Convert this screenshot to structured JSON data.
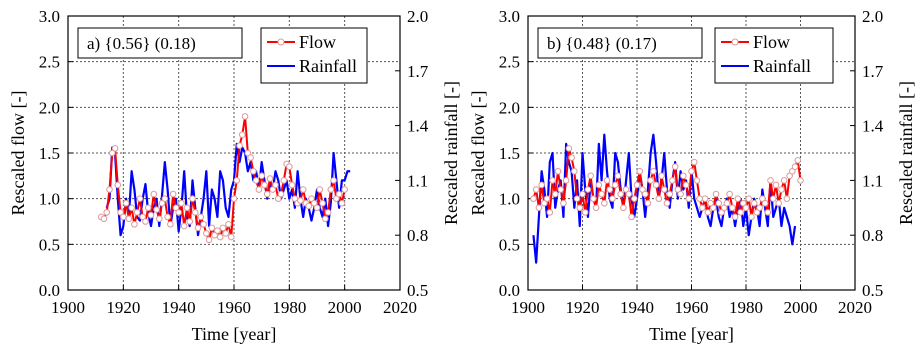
{
  "chart_data": [
    {
      "type": "line",
      "annotation": "a) {0.56} (0.18)",
      "xlabel": "Time [year]",
      "ylabel": "Rescaled flow [-]",
      "ylabel_right": "Rescaled rainfall [-]",
      "xlim": [
        1900,
        2020
      ],
      "ylim": [
        0,
        3
      ],
      "ylim_right": [
        0.5,
        2
      ],
      "x_ticks": [
        "1900",
        "1920",
        "1940",
        "1960",
        "1980",
        "2000",
        "2020"
      ],
      "y_ticks": [
        "0.0",
        "0.5",
        "1.0",
        "1.5",
        "2.0",
        "2.5",
        "3.0"
      ],
      "y_ticks_right": [
        "0.5",
        "0.8",
        "1.1",
        "1.4",
        "1.7",
        "2.0"
      ],
      "grid": true,
      "legend_position": "top-right",
      "series": [
        {
          "name": "Flow",
          "color": "#ff0000",
          "axis": "left",
          "marker": "circle",
          "x": [
            1912,
            1913,
            1914,
            1915,
            1916,
            1917,
            1918,
            1919,
            1920,
            1921,
            1922,
            1923,
            1924,
            1925,
            1926,
            1927,
            1928,
            1929,
            1930,
            1931,
            1932,
            1933,
            1934,
            1935,
            1936,
            1937,
            1938,
            1939,
            1940,
            1941,
            1942,
            1943,
            1944,
            1945,
            1946,
            1947,
            1948,
            1949,
            1950,
            1951,
            1952,
            1953,
            1954,
            1955,
            1956,
            1957,
            1958,
            1959,
            1960,
            1961,
            1962,
            1963,
            1964,
            1965,
            1966,
            1967,
            1968,
            1969,
            1970,
            1971,
            1972,
            1973,
            1974,
            1975,
            1976,
            1977,
            1978,
            1979,
            1980,
            1981,
            1982,
            1983,
            1984,
            1985,
            1986,
            1987,
            1988,
            1989,
            1990,
            1991,
            1992,
            1993,
            1994,
            1995,
            1996,
            1997,
            1998,
            1999,
            2000
          ],
          "values": [
            0.8,
            0.78,
            0.85,
            1.1,
            1.5,
            1.55,
            1.15,
            0.85,
            0.8,
            0.95,
            0.78,
            0.9,
            0.72,
            0.85,
            1.0,
            0.8,
            0.75,
            0.9,
            0.82,
            1.05,
            0.88,
            0.78,
            0.95,
            1.0,
            0.8,
            0.72,
            1.05,
            0.9,
            0.85,
            0.95,
            0.7,
            0.9,
            0.75,
            1.0,
            0.85,
            0.68,
            0.8,
            0.72,
            0.62,
            0.55,
            0.68,
            0.6,
            0.65,
            0.58,
            0.68,
            0.62,
            0.72,
            0.58,
            1.0,
            1.2,
            1.58,
            1.7,
            1.9,
            1.5,
            1.45,
            1.3,
            1.2,
            1.1,
            1.25,
            1.15,
            1.05,
            1.22,
            1.1,
            1.15,
            1.0,
            1.05,
            1.2,
            1.38,
            1.35,
            1.15,
            1.0,
            0.95,
            0.98,
            1.1,
            0.95,
            0.92,
            1.0,
            0.95,
            0.9,
            1.1,
            0.95,
            0.78,
            0.85,
            1.1,
            1.2,
            1.0,
            1.05,
            0.95,
            1.1
          ]
        },
        {
          "name": "Rainfall",
          "color": "#0000ff",
          "axis": "right",
          "marker": "none",
          "x": [
            1914,
            1915,
            1916,
            1917,
            1918,
            1919,
            1920,
            1921,
            1922,
            1923,
            1924,
            1925,
            1926,
            1927,
            1928,
            1929,
            1930,
            1931,
            1932,
            1933,
            1934,
            1935,
            1936,
            1937,
            1938,
            1939,
            1940,
            1941,
            1942,
            1943,
            1944,
            1945,
            1946,
            1947,
            1948,
            1949,
            1950,
            1951,
            1952,
            1953,
            1954,
            1955,
            1956,
            1957,
            1958,
            1959,
            1960,
            1961,
            1962,
            1963,
            1964,
            1965,
            1966,
            1967,
            1968,
            1969,
            1970,
            1971,
            1972,
            1973,
            1974,
            1975,
            1976,
            1977,
            1978,
            1979,
            1980,
            1981,
            1982,
            1983,
            1984,
            1985,
            1986,
            1987,
            1988,
            1989,
            1990,
            1991,
            1992,
            1993,
            1994,
            1995,
            1996,
            1997,
            1998,
            1999,
            2000,
            2001,
            2002
          ],
          "values": [
            0.95,
            1.0,
            1.28,
            1.25,
            1.0,
            0.8,
            0.85,
            1.0,
            0.9,
            1.15,
            1.05,
            0.9,
            0.88,
            1.0,
            1.08,
            0.92,
            0.85,
            0.95,
            1.0,
            0.85,
            1.02,
            1.2,
            1.05,
            0.85,
            0.95,
            1.0,
            0.82,
            0.95,
            1.15,
            0.9,
            0.85,
            1.1,
            0.95,
            0.8,
            0.9,
            1.0,
            1.15,
            0.85,
            1.05,
            1.0,
            0.9,
            1.15,
            1.1,
            0.95,
            0.9,
            1.05,
            1.1,
            1.3,
            1.2,
            1.28,
            1.25,
            1.15,
            1.2,
            1.1,
            1.15,
            1.05,
            1.2,
            1.1,
            1.0,
            1.08,
            1.05,
            1.15,
            1.1,
            1.0,
            1.05,
            1.1,
            1.0,
            1.05,
            0.95,
            1.15,
            1.0,
            0.9,
            1.0,
            0.95,
            0.88,
            0.95,
            1.05,
            0.95,
            0.9,
            1.0,
            0.85,
            0.98,
            1.25,
            1.1,
            0.95,
            1.1,
            1.1,
            1.15,
            1.15
          ]
        }
      ]
    },
    {
      "type": "line",
      "annotation": "b) {0.48} (0.17)",
      "xlabel": "Time [year]",
      "ylabel": "Rescaled flow [-]",
      "ylabel_right": "Rescaled rainfall [-]",
      "xlim": [
        1900,
        2020
      ],
      "ylim": [
        0,
        3
      ],
      "ylim_right": [
        0.5,
        2
      ],
      "x_ticks": [
        "1900",
        "1920",
        "1940",
        "1960",
        "1980",
        "2000",
        "2020"
      ],
      "y_ticks": [
        "0.0",
        "0.5",
        "1.0",
        "1.5",
        "2.0",
        "2.5",
        "3.0"
      ],
      "y_ticks_right": [
        "0.5",
        "0.8",
        "1.1",
        "1.4",
        "1.7",
        "2.0"
      ],
      "grid": true,
      "legend_position": "top-right",
      "series": [
        {
          "name": "Flow",
          "color": "#ff0000",
          "axis": "left",
          "marker": "circle",
          "x": [
            1902,
            1903,
            1904,
            1905,
            1906,
            1907,
            1908,
            1909,
            1910,
            1911,
            1912,
            1913,
            1914,
            1915,
            1916,
            1917,
            1918,
            1919,
            1920,
            1921,
            1922,
            1923,
            1924,
            1925,
            1926,
            1927,
            1928,
            1929,
            1930,
            1931,
            1932,
            1933,
            1934,
            1935,
            1936,
            1937,
            1938,
            1939,
            1940,
            1941,
            1942,
            1943,
            1944,
            1945,
            1946,
            1947,
            1948,
            1949,
            1950,
            1951,
            1952,
            1953,
            1954,
            1955,
            1956,
            1957,
            1958,
            1959,
            1960,
            1961,
            1962,
            1963,
            1964,
            1965,
            1966,
            1967,
            1968,
            1969,
            1970,
            1971,
            1972,
            1973,
            1974,
            1975,
            1976,
            1977,
            1978,
            1979,
            1980,
            1981,
            1982,
            1983,
            1984,
            1985,
            1986,
            1987,
            1988,
            1989,
            1990,
            1991,
            1992,
            1993,
            1994,
            1995,
            1996,
            1997,
            1998,
            1999,
            2000
          ],
          "values": [
            1.0,
            1.1,
            0.9,
            1.15,
            0.95,
            1.0,
            0.85,
            1.2,
            1.05,
            1.3,
            1.1,
            0.95,
            1.2,
            1.55,
            1.45,
            1.3,
            1.0,
            0.9,
            1.05,
            0.85,
            1.1,
            1.25,
            1.0,
            0.9,
            1.15,
            1.05,
            0.95,
            1.2,
            1.1,
            1.0,
            1.15,
            1.25,
            1.05,
            0.9,
            1.1,
            1.05,
            0.8,
            1.0,
            1.15,
            1.3,
            1.1,
            1.05,
            0.95,
            1.2,
            1.3,
            1.15,
            1.0,
            1.25,
            1.1,
            0.95,
            1.05,
            1.2,
            1.35,
            1.1,
            1.05,
            1.25,
            1.15,
            1.0,
            1.3,
            1.4,
            1.2,
            1.0,
            0.9,
            1.0,
            0.85,
            0.95,
            0.9,
            1.05,
            0.95,
            0.85,
            0.9,
            0.95,
            1.05,
            0.9,
            0.8,
            1.0,
            0.85,
            0.95,
            0.9,
            1.0,
            0.8,
            0.95,
            0.85,
            0.9,
            1.0,
            0.95,
            0.85,
            1.2,
            1.0,
            1.15,
            0.95,
            1.1,
            1.2,
            1.0,
            1.25,
            1.3,
            1.35,
            1.42,
            1.2
          ]
        },
        {
          "name": "Rainfall",
          "color": "#0000ff",
          "axis": "right",
          "marker": "none",
          "x": [
            1902,
            1903,
            1904,
            1905,
            1906,
            1907,
            1908,
            1909,
            1910,
            1911,
            1912,
            1913,
            1914,
            1915,
            1916,
            1917,
            1918,
            1919,
            1920,
            1921,
            1922,
            1923,
            1924,
            1925,
            1926,
            1927,
            1928,
            1929,
            1930,
            1931,
            1932,
            1933,
            1934,
            1935,
            1936,
            1937,
            1938,
            1939,
            1940,
            1941,
            1942,
            1943,
            1944,
            1945,
            1946,
            1947,
            1948,
            1949,
            1950,
            1951,
            1952,
            1953,
            1954,
            1955,
            1956,
            1957,
            1958,
            1959,
            1960,
            1961,
            1962,
            1963,
            1964,
            1965,
            1966,
            1967,
            1968,
            1969,
            1970,
            1971,
            1972,
            1973,
            1974,
            1975,
            1976,
            1977,
            1978,
            1979,
            1980,
            1981,
            1982,
            1983,
            1984,
            1985,
            1986,
            1987,
            1988,
            1989,
            1990,
            1991,
            1992,
            1993,
            1994,
            1995,
            1996,
            1997,
            1998
          ],
          "values": [
            0.8,
            0.65,
            0.9,
            1.15,
            1.05,
            0.9,
            1.2,
            1.25,
            0.95,
            1.05,
            1.1,
            0.9,
            1.3,
            1.2,
            1.15,
            0.95,
            1.1,
            0.85,
            1.25,
            1.05,
            0.9,
            1.1,
            1.0,
            0.95,
            1.3,
            1.1,
            1.35,
            1.15,
            1.0,
            0.95,
            1.25,
            1.2,
            1.05,
            0.95,
            1.1,
            1.25,
            1.0,
            0.9,
            1.0,
            1.15,
            1.05,
            0.9,
            1.05,
            1.25,
            1.35,
            1.2,
            1.0,
            1.1,
            1.25,
            1.05,
            0.95,
            1.1,
            1.2,
            1.0,
            1.15,
            1.05,
            1.1,
            0.95,
            1.15,
            1.0,
            0.95,
            0.9,
            0.95,
            1.0,
            0.9,
            0.85,
            0.95,
            1.0,
            0.9,
            0.85,
            0.95,
            1.0,
            0.9,
            0.95,
            0.85,
            0.95,
            1.0,
            0.85,
            0.95,
            0.8,
            0.9,
            1.0,
            0.95,
            0.85,
            1.05,
            0.95,
            0.85,
            1.1,
            0.9,
            0.95,
            1.0,
            0.85,
            0.95,
            0.9,
            0.85,
            0.75,
            0.85
          ]
        }
      ]
    }
  ]
}
